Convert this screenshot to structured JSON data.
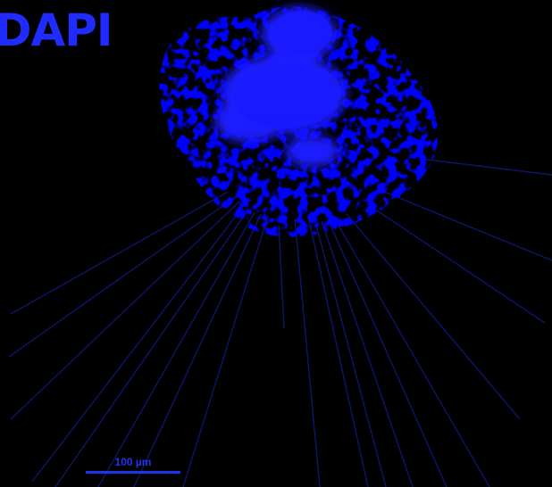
{
  "image": {
    "background_color": "#000000",
    "stain_color": "#1a1aff",
    "fiber_color": "#0d1a7a"
  },
  "channel_label": "DAPI",
  "scale_bar": {
    "label": "100 µm",
    "color": "#2233ee"
  }
}
